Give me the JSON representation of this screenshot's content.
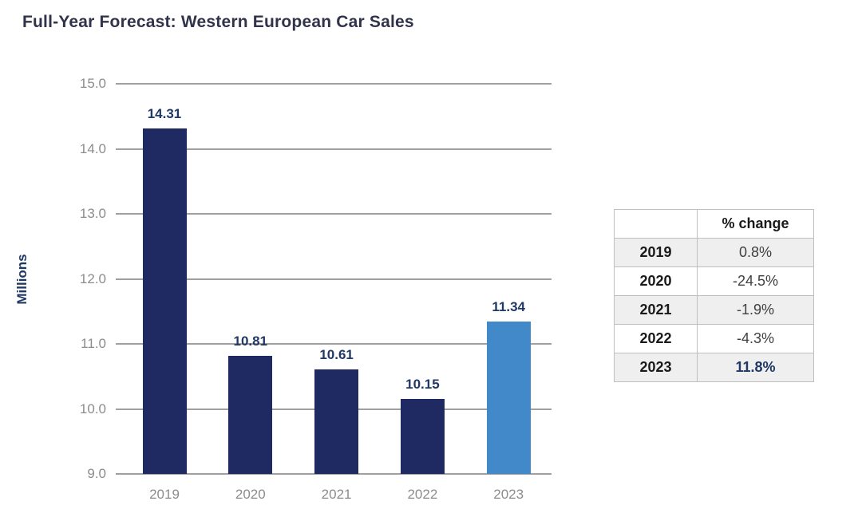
{
  "title": "Full-Year Forecast: Western European Car Sales",
  "chart_data": {
    "type": "bar",
    "categories": [
      "2019",
      "2020",
      "2021",
      "2022",
      "2023"
    ],
    "values": [
      14.31,
      10.81,
      10.61,
      10.15,
      11.34
    ],
    "value_labels": [
      "14.31",
      "10.81",
      "10.61",
      "10.15",
      "11.34"
    ],
    "title": "Full-Year Forecast: Western European Car Sales",
    "xlabel": "",
    "ylabel": "Millions",
    "ylim": [
      9.0,
      15.0
    ],
    "yticks": [
      {
        "value": 15.0,
        "label": "15.0"
      },
      {
        "value": 14.0,
        "label": "14.0"
      },
      {
        "value": 13.0,
        "label": "13.0"
      },
      {
        "value": 12.0,
        "label": "12.0"
      },
      {
        "value": 11.0,
        "label": "11.0"
      },
      {
        "value": 10.0,
        "label": "10.0"
      },
      {
        "value": 9.0,
        "label": "9.0"
      }
    ],
    "grid": true,
    "legend": "none",
    "bar_colors": [
      "#1f2a63",
      "#1f2a63",
      "#1f2a63",
      "#1f2a63",
      "#4189c8"
    ],
    "colors": {
      "bar_default": "#1f2a63",
      "bar_highlight": "#4189c8",
      "value_label": "#1f3864",
      "axis_text": "#8c8c8c",
      "gridline": "#a0a0a0",
      "title_text": "#30334a"
    }
  },
  "table": {
    "header": [
      "",
      "% change"
    ],
    "rows": [
      {
        "year": "2019",
        "change": "0.8%",
        "emphasis": false
      },
      {
        "year": "2020",
        "change": "-24.5%",
        "emphasis": false
      },
      {
        "year": "2021",
        "change": "-1.9%",
        "emphasis": false
      },
      {
        "year": "2022",
        "change": "-4.3%",
        "emphasis": false
      },
      {
        "year": "2023",
        "change": "11.8%",
        "emphasis": true
      }
    ]
  }
}
